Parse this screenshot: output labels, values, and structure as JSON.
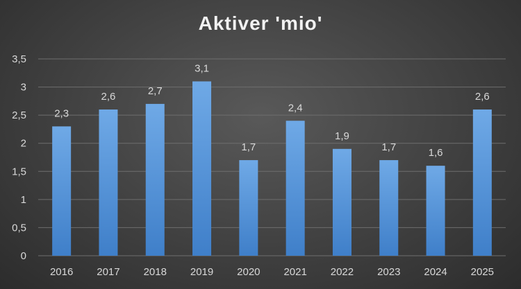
{
  "chart_data": {
    "type": "bar",
    "title": "Aktiver 'mio'",
    "categories": [
      "2016",
      "2017",
      "2018",
      "2019",
      "2020",
      "2021",
      "2022",
      "2023",
      "2024",
      "2025"
    ],
    "values": [
      2.3,
      2.6,
      2.7,
      3.1,
      1.7,
      2.4,
      1.9,
      1.7,
      1.6,
      2.6
    ],
    "data_labels": [
      "2,3",
      "2,6",
      "2,7",
      "3,1",
      "1,7",
      "2,4",
      "1,9",
      "1,7",
      "1,6",
      "2,6"
    ],
    "y_ticks": [
      0,
      0.5,
      1,
      1.5,
      2,
      2.5,
      3,
      3.5
    ],
    "y_tick_labels": [
      "0",
      "0,5",
      "1",
      "1,5",
      "2",
      "2,5",
      "3",
      "3,5"
    ],
    "ylim": [
      0,
      3.5
    ],
    "grid": true,
    "legend": "none",
    "bar_color_top": "#6fa9e6",
    "bar_color_bottom": "#3f7fc9",
    "text_color": "#d9d9d9"
  }
}
